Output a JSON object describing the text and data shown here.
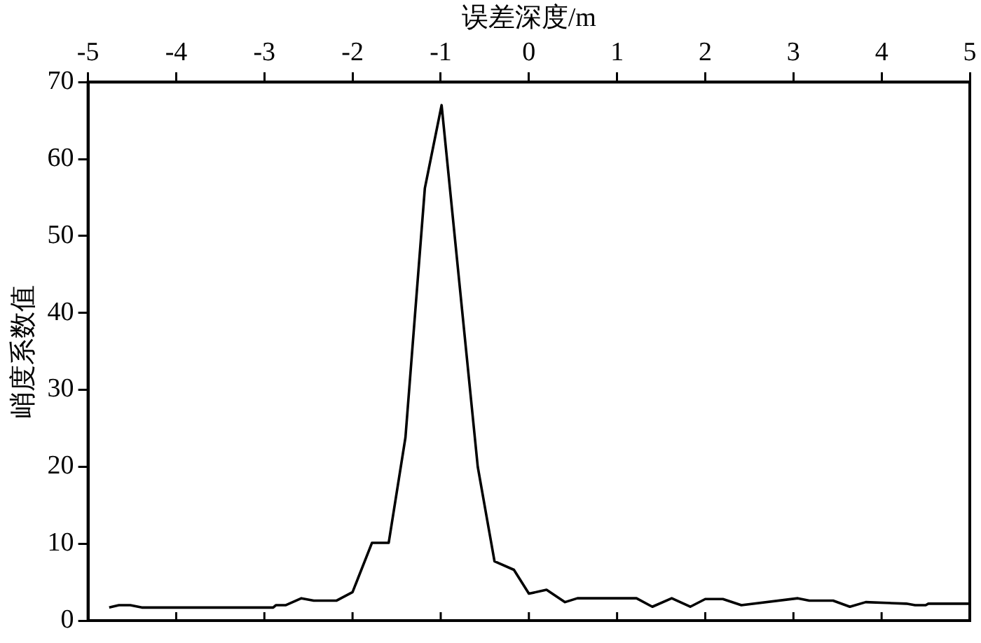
{
  "chart_data": {
    "type": "line",
    "xlabel": "误差深度/m",
    "ylabel": "峭度系数值",
    "xlim": [
      -5,
      5
    ],
    "xticks": [
      -5,
      -4,
      -3,
      -2,
      -1,
      0,
      1,
      2,
      3,
      4,
      5
    ],
    "ylim": [
      0,
      70
    ],
    "yticks": [
      0,
      10,
      20,
      30,
      40,
      50,
      60,
      70
    ],
    "grid": false,
    "legend": false,
    "marker": "none",
    "line_style": "solid",
    "series": [
      {
        "color": "#000000",
        "x": [
          -4.76,
          -4.65,
          -4.52,
          -4.39,
          -2.9,
          -2.87,
          -2.76,
          -2.58,
          -2.44,
          -2.18,
          -2.0,
          -1.78,
          -1.59,
          -1.4,
          -1.18,
          -0.99,
          -0.58,
          -0.39,
          -0.17,
          0.0,
          0.2,
          0.41,
          0.55,
          1.22,
          1.4,
          1.62,
          1.83,
          2.0,
          2.2,
          2.41,
          3.05,
          3.18,
          3.45,
          3.64,
          3.82,
          4.28,
          4.38,
          4.5,
          4.53,
          5.0
        ],
        "values": [
          1.7,
          2.0,
          2.0,
          1.7,
          1.7,
          2.0,
          2.0,
          2.9,
          2.6,
          2.6,
          3.7,
          10.1,
          10.1,
          23.8,
          56.2,
          67,
          20,
          7.7,
          6.6,
          3.5,
          4,
          2.4,
          2.9,
          2.9,
          1.8,
          2.9,
          1.8,
          2.8,
          2.8,
          2.0,
          2.9,
          2.6,
          2.6,
          1.8,
          2.4,
          2.2,
          2.0,
          2.0,
          2.2,
          2.2
        ]
      }
    ]
  }
}
